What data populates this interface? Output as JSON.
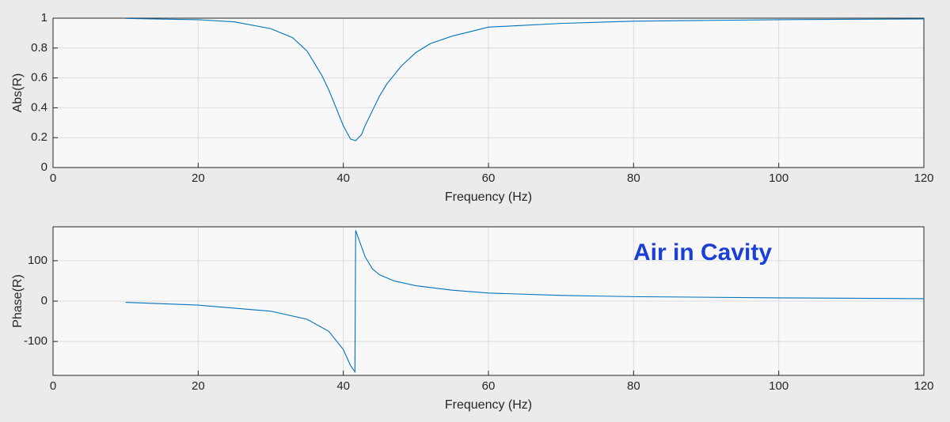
{
  "chart_data": [
    {
      "type": "line",
      "xlabel": "Frequency (Hz)",
      "ylabel": "Abs(R)",
      "xlim": [
        0,
        120
      ],
      "xticks": [
        0,
        20,
        40,
        60,
        80,
        100,
        120
      ],
      "ylim": [
        0,
        1
      ],
      "yticks": [
        0,
        0.2,
        0.4,
        0.6,
        0.8,
        1
      ],
      "grid": true,
      "x": [
        10,
        20,
        25,
        30,
        33,
        35,
        37,
        38,
        39,
        40,
        41,
        41.7,
        42.5,
        43,
        44,
        45,
        46,
        48,
        50,
        52,
        55,
        60,
        70,
        80,
        100,
        120
      ],
      "series": [
        {
          "color": "#0072bd",
          "values": [
            0.998,
            0.99,
            0.975,
            0.93,
            0.87,
            0.78,
            0.62,
            0.52,
            0.4,
            0.28,
            0.19,
            0.18,
            0.22,
            0.28,
            0.38,
            0.48,
            0.56,
            0.68,
            0.77,
            0.83,
            0.88,
            0.94,
            0.965,
            0.98,
            0.99,
            0.995
          ]
        }
      ]
    },
    {
      "type": "line",
      "xlabel": "Frequency (Hz)",
      "ylabel": "Phase(R)",
      "annotation": "Air in Cavity",
      "xlim": [
        0,
        120
      ],
      "xticks": [
        0,
        20,
        40,
        60,
        80,
        100,
        120
      ],
      "ylim": [
        -184,
        184
      ],
      "yticks": [
        -100,
        0,
        100
      ],
      "grid": true,
      "x": [
        10,
        20,
        30,
        35,
        38,
        40,
        41,
        41.6,
        41.7,
        42,
        43,
        44,
        45,
        47,
        50,
        55,
        60,
        70,
        80,
        100,
        120
      ],
      "series": [
        {
          "color": "#0072bd",
          "values": [
            -3,
            -10,
            -25,
            -45,
            -75,
            -120,
            -160,
            -175,
            175,
            160,
            110,
            80,
            65,
            50,
            38,
            27,
            20,
            14,
            11,
            8,
            6
          ]
        }
      ]
    }
  ]
}
